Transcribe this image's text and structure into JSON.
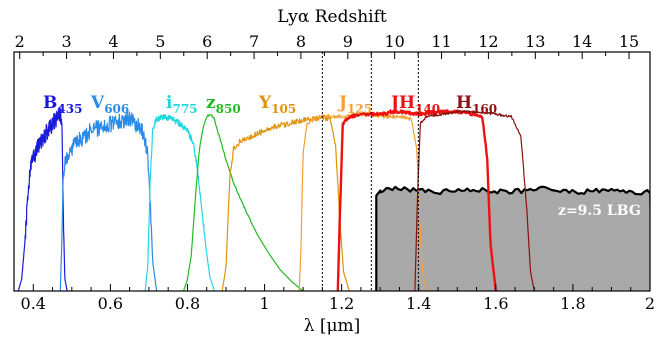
{
  "chart_data": {
    "type": "line",
    "title": "",
    "xlabel": "λ  [μm]",
    "top_xlabel": "Lyα Redshift",
    "ylabel": "",
    "xlim": [
      0.35,
      2.0
    ],
    "x_ticks": [
      "0.4",
      "0.6",
      "0.8",
      "1",
      "1.2",
      "1.4",
      "1.6",
      "1.8",
      "2"
    ],
    "top_ticks": [
      "2",
      "3",
      "4",
      "5",
      "6",
      "7",
      "8",
      "9",
      "10",
      "11",
      "12",
      "13",
      "14",
      "15"
    ],
    "ylim": [
      0,
      1
    ],
    "y_ticks_shown": false,
    "grid": false,
    "dotted_lines_x": [
      1.15,
      1.277,
      1.399
    ],
    "series": [
      {
        "name": "B",
        "sub": "435",
        "color": "#1a1adb",
        "range": [
          0.361,
          0.488
        ],
        "curve": [
          [
            0.361,
            0.0
          ],
          [
            0.37,
            0.05
          ],
          [
            0.378,
            0.2
          ],
          [
            0.386,
            0.4
          ],
          [
            0.393,
            0.52
          ],
          [
            0.4,
            0.55
          ],
          [
            0.41,
            0.6
          ],
          [
            0.42,
            0.63
          ],
          [
            0.43,
            0.65
          ],
          [
            0.44,
            0.68
          ],
          [
            0.45,
            0.7
          ],
          [
            0.46,
            0.72
          ],
          [
            0.468,
            0.74
          ],
          [
            0.474,
            0.72
          ],
          [
            0.478,
            0.3
          ],
          [
            0.482,
            0.05
          ],
          [
            0.488,
            0.0
          ]
        ]
      },
      {
        "name": "V",
        "sub": "606",
        "color": "#2a8ae8",
        "range": [
          0.47,
          0.72
        ],
        "curve": [
          [
            0.47,
            0.0
          ],
          [
            0.474,
            0.2
          ],
          [
            0.478,
            0.5
          ],
          [
            0.485,
            0.55
          ],
          [
            0.5,
            0.6
          ],
          [
            0.52,
            0.63
          ],
          [
            0.55,
            0.67
          ],
          [
            0.58,
            0.69
          ],
          [
            0.6,
            0.7
          ],
          [
            0.63,
            0.71
          ],
          [
            0.65,
            0.72
          ],
          [
            0.68,
            0.68
          ],
          [
            0.695,
            0.6
          ],
          [
            0.703,
            0.4
          ],
          [
            0.71,
            0.12
          ],
          [
            0.72,
            0.0
          ]
        ]
      },
      {
        "name": "i",
        "sub": "775",
        "color": "#22d8e0",
        "range": [
          0.69,
          0.87
        ],
        "curve": [
          [
            0.69,
            0.0
          ],
          [
            0.697,
            0.1
          ],
          [
            0.703,
            0.45
          ],
          [
            0.71,
            0.68
          ],
          [
            0.72,
            0.72
          ],
          [
            0.74,
            0.73
          ],
          [
            0.76,
            0.72
          ],
          [
            0.78,
            0.7
          ],
          [
            0.8,
            0.67
          ],
          [
            0.815,
            0.62
          ],
          [
            0.825,
            0.52
          ],
          [
            0.832,
            0.42
          ],
          [
            0.84,
            0.3
          ],
          [
            0.848,
            0.18
          ],
          [
            0.858,
            0.06
          ],
          [
            0.87,
            0.0
          ]
        ]
      },
      {
        "name": "z",
        "sub": "850",
        "color": "#22bb22",
        "range": [
          0.79,
          1.1
        ],
        "curve": [
          [
            0.79,
            0.0
          ],
          [
            0.8,
            0.05
          ],
          [
            0.81,
            0.15
          ],
          [
            0.82,
            0.38
          ],
          [
            0.83,
            0.58
          ],
          [
            0.84,
            0.68
          ],
          [
            0.85,
            0.73
          ],
          [
            0.86,
            0.74
          ],
          [
            0.87,
            0.72
          ],
          [
            0.88,
            0.66
          ],
          [
            0.9,
            0.55
          ],
          [
            0.92,
            0.45
          ],
          [
            0.95,
            0.34
          ],
          [
            0.98,
            0.24
          ],
          [
            1.01,
            0.16
          ],
          [
            1.04,
            0.09
          ],
          [
            1.07,
            0.04
          ],
          [
            1.1,
            0.0
          ]
        ]
      },
      {
        "name": "Y",
        "sub": "105",
        "color": "#e0920a",
        "range": [
          0.89,
          1.22
        ],
        "curve": [
          [
            0.89,
            0.0
          ],
          [
            0.9,
            0.1
          ],
          [
            0.91,
            0.48
          ],
          [
            0.92,
            0.6
          ],
          [
            0.94,
            0.63
          ],
          [
            0.97,
            0.65
          ],
          [
            1.0,
            0.67
          ],
          [
            1.03,
            0.69
          ],
          [
            1.06,
            0.7
          ],
          [
            1.09,
            0.71
          ],
          [
            1.11,
            0.72
          ],
          [
            1.13,
            0.72
          ],
          [
            1.15,
            0.73
          ],
          [
            1.17,
            0.72
          ],
          [
            1.185,
            0.6
          ],
          [
            1.195,
            0.3
          ],
          [
            1.205,
            0.08
          ],
          [
            1.22,
            0.0
          ]
        ]
      },
      {
        "name": "J",
        "sub": "125",
        "color": "#f5a030",
        "range": [
          1.09,
          1.42
        ],
        "curve": [
          [
            1.09,
            0.0
          ],
          [
            1.095,
            0.2
          ],
          [
            1.1,
            0.58
          ],
          [
            1.11,
            0.7
          ],
          [
            1.13,
            0.72
          ],
          [
            1.15,
            0.73
          ],
          [
            1.2,
            0.73
          ],
          [
            1.25,
            0.74
          ],
          [
            1.3,
            0.73
          ],
          [
            1.35,
            0.73
          ],
          [
            1.38,
            0.72
          ],
          [
            1.395,
            0.6
          ],
          [
            1.402,
            0.3
          ],
          [
            1.41,
            0.08
          ],
          [
            1.42,
            0.0
          ]
        ]
      },
      {
        "name": "JH",
        "sub": "140",
        "color": "#ee1111",
        "range": [
          1.19,
          1.6
        ],
        "curve": [
          [
            1.19,
            0.0
          ],
          [
            1.197,
            0.4
          ],
          [
            1.203,
            0.7
          ],
          [
            1.22,
            0.73
          ],
          [
            1.26,
            0.74
          ],
          [
            1.3,
            0.74
          ],
          [
            1.35,
            0.75
          ],
          [
            1.4,
            0.74
          ],
          [
            1.45,
            0.75
          ],
          [
            1.5,
            0.75
          ],
          [
            1.54,
            0.74
          ],
          [
            1.565,
            0.73
          ],
          [
            1.578,
            0.55
          ],
          [
            1.586,
            0.2
          ],
          [
            1.6,
            0.0
          ]
        ]
      },
      {
        "name": "H",
        "sub": "160",
        "color": "#8b1010",
        "range": [
          1.39,
          1.7
        ],
        "curve": [
          [
            1.39,
            0.0
          ],
          [
            1.397,
            0.4
          ],
          [
            1.404,
            0.7
          ],
          [
            1.42,
            0.73
          ],
          [
            1.46,
            0.74
          ],
          [
            1.5,
            0.75
          ],
          [
            1.55,
            0.75
          ],
          [
            1.6,
            0.74
          ],
          [
            1.64,
            0.73
          ],
          [
            1.665,
            0.65
          ],
          [
            1.68,
            0.35
          ],
          [
            1.69,
            0.08
          ],
          [
            1.7,
            0.0
          ]
        ]
      }
    ],
    "lbg": {
      "label": "z=9.5 LBG",
      "fill": "#a9a9a9",
      "x_start": 1.29,
      "x_end": 2.0,
      "level": 0.42
    }
  }
}
